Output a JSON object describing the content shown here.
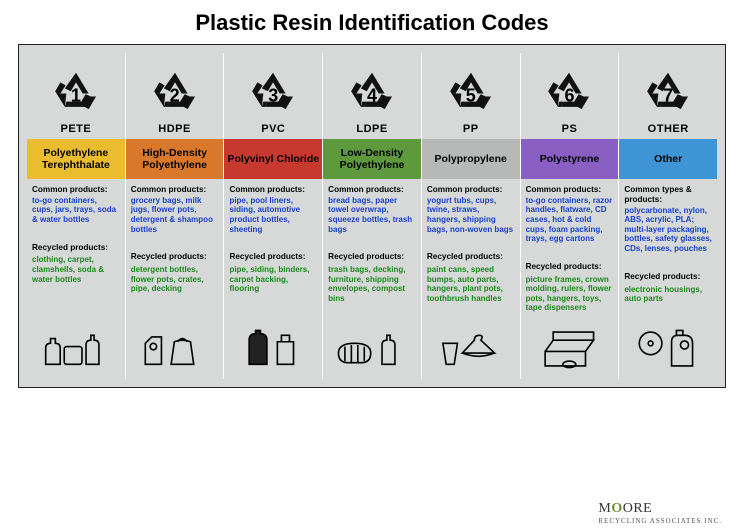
{
  "title": "Plastic Resin Identification Codes",
  "type": "infographic-table",
  "background_color": "#d6d9d7",
  "common_text_color": "#1a3fcf",
  "recycled_text_color": "#1a8a1a",
  "columns": [
    {
      "num": "1",
      "abbr": "PETE",
      "name": "Polyethylene Terephthalate",
      "band_color": "#e9bd2e",
      "common_label": "Common products:",
      "common": "to-go containers, cups, jars, trays, soda & water bottles",
      "recycled_label": "Recycled products:",
      "recycled": "clothing, carpet, clamshells, soda & water bottles"
    },
    {
      "num": "2",
      "abbr": "HDPE",
      "name": "High-Density Polyethylene",
      "band_color": "#d9782a",
      "common_label": "Common products:",
      "common": "grocery bags, milk jugs, flower pots, detergent & shampoo bottles",
      "recycled_label": "Recycled products:",
      "recycled": "detergent bottles, flower pots, crates, pipe, decking"
    },
    {
      "num": "3",
      "abbr": "PVC",
      "name": "Polyvinyl Chloride",
      "band_color": "#c7382e",
      "common_label": "Common products:",
      "common": "pipe, pool liners, siding, automotive product bottles, sheeting",
      "recycled_label": "Recycled products:",
      "recycled": "pipe, siding, binders, carpet backing, flooring"
    },
    {
      "num": "4",
      "abbr": "LDPE",
      "name": "Low-Density Polyethylene",
      "band_color": "#5e9a3d",
      "common_label": "Common products:",
      "common": "bread bags, paper towel overwrap, squeeze bottles, trash bags",
      "recycled_label": "Recycled products:",
      "recycled": "trash bags, decking, furniture, shipping envelopes, compost bins"
    },
    {
      "num": "5",
      "abbr": "PP",
      "name": "Polypropylene",
      "band_color": "#b6b9b7",
      "common_label": "Common products:",
      "common": "yogurt tubs, cups, twine, straws, hangers, shipping bags, non-woven bags",
      "recycled_label": "Recycled products:",
      "recycled": "paint cans, speed bumps, auto parts, hangers, plant pots, toothbrush handles"
    },
    {
      "num": "6",
      "abbr": "PS",
      "name": "Polystyrene",
      "band_color": "#8a5fc4",
      "common_label": "Common products:",
      "common": "to-go containers, razor handles, flatware, CD cases, hot & cold cups, foam packing, trays, egg cartons",
      "recycled_label": "Recycled products:",
      "recycled": "picture frames, crown molding, rulers, flower pots, hangers, toys, tape dispensers"
    },
    {
      "num": "7",
      "abbr": "OTHER",
      "name": "Other",
      "band_color": "#3f94d6",
      "common_label": "Common types & products:",
      "common": "polycarbonate, nylon, ABS, acrylic, PLA; multi-layer packaging, bottles, safety glasses, CDs, lenses, pouches",
      "recycled_label": "Recycled products:",
      "recycled": "electronic housings, auto parts"
    }
  ],
  "logo": {
    "text1": "M",
    "accent": "O",
    "text2": "ORE",
    "sub": "RECYCLING ASSOCIATES INC."
  }
}
